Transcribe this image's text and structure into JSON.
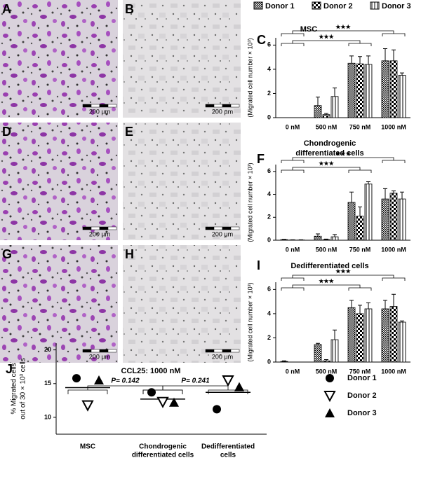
{
  "panels": [
    {
      "label": "A",
      "scale_bar": "200 µm"
    },
    {
      "label": "B",
      "scale_bar": "200 µm"
    },
    {
      "label": "D",
      "scale_bar": "200 µm"
    },
    {
      "label": "E",
      "scale_bar": "200 µm"
    },
    {
      "label": "G",
      "scale_bar": "200 µm"
    },
    {
      "label": "H",
      "scale_bar": "200 µm"
    }
  ],
  "chart_data": [
    {
      "type": "bar",
      "panel": "C",
      "title": "MSC",
      "ylabel": "(Migrated cell number × 10³)",
      "categories": [
        "0 nM",
        "500 nM",
        "750 nM",
        "1000 nM"
      ],
      "ylim": [
        0,
        6.6
      ],
      "yticks": [
        0,
        2,
        4,
        6
      ],
      "annotations": [
        "★★★",
        "★★★"
      ],
      "series": [
        {
          "name": "Donor 1",
          "pattern": "crosshatch",
          "color": "#000000",
          "values": [
            0,
            1.0,
            4.5,
            4.7
          ],
          "errors": [
            0,
            0.7,
            0.6,
            1.0
          ]
        },
        {
          "name": "Donor 2",
          "pattern": "checker",
          "color": "#000000",
          "values": [
            0,
            0.25,
            4.45,
            4.7
          ],
          "errors": [
            0,
            0.1,
            0.6,
            0.9
          ]
        },
        {
          "name": "Donor 3",
          "pattern": "stripes",
          "color": "#000000",
          "values": [
            0,
            1.75,
            4.4,
            3.5
          ],
          "errors": [
            0,
            0.7,
            0.7,
            0.2
          ]
        }
      ]
    },
    {
      "type": "bar",
      "panel": "F",
      "title": [
        "Chondrogenic",
        "differentiated cells"
      ],
      "ylabel": "(Migrated cell number × 10³)",
      "categories": [
        "0 nM",
        "500 nM",
        "750 nM",
        "1000 nM"
      ],
      "ylim": [
        0,
        6.6
      ],
      "yticks": [
        0,
        2,
        4,
        6
      ],
      "annotations": [
        "★★★",
        "★★★"
      ],
      "series": [
        {
          "pattern": "crosshatch",
          "color": "#000000",
          "values": [
            0.05,
            0.35,
            3.3,
            3.6
          ],
          "errors": [
            0.03,
            0.2,
            0.9,
            0.9
          ]
        },
        {
          "pattern": "checker",
          "color": "#000000",
          "values": [
            0.02,
            0.05,
            2.1,
            4.1
          ],
          "errors": [
            0.02,
            0.05,
            0.8,
            0.2
          ]
        },
        {
          "pattern": "stripes",
          "color": "#000000",
          "values": [
            0.02,
            0.3,
            4.9,
            3.6
          ],
          "errors": [
            0.02,
            0.2,
            0.2,
            0.6
          ]
        }
      ]
    },
    {
      "type": "bar",
      "panel": "I",
      "title": "Dedifferentiated cells",
      "ylabel": "(Migrated cell number × 10³)",
      "categories": [
        "0 nM",
        "500 nM",
        "750 nM",
        "1000 nM"
      ],
      "ylim": [
        0,
        6.6
      ],
      "yticks": [
        0,
        2,
        4,
        6
      ],
      "annotations": [
        "★★★",
        "★★★"
      ],
      "series": [
        {
          "pattern": "crosshatch",
          "color": "#000000",
          "values": [
            0.05,
            1.45,
            4.5,
            4.4
          ],
          "errors": [
            0.05,
            0.1,
            0.6,
            0.7
          ]
        },
        {
          "pattern": "checker",
          "color": "#000000",
          "values": [
            0,
            0.1,
            4.0,
            4.6
          ],
          "errors": [
            0,
            0.1,
            0.7,
            1.0
          ]
        },
        {
          "pattern": "stripes",
          "color": "#000000",
          "values": [
            0,
            1.85,
            4.4,
            3.3
          ],
          "errors": [
            0,
            0.8,
            0.5,
            0.1
          ]
        }
      ]
    },
    {
      "type": "dot",
      "panel": "J",
      "title": "CCL25: 1000 nM",
      "ylabel": [
        "% Migrated cells",
        "out of 30 × 10³ cells"
      ],
      "categories": [
        [
          "MSC"
        ],
        [
          "Chondrogenic",
          "differentiated cells"
        ],
        [
          "Dedifferentiated",
          "cells"
        ]
      ],
      "ylim": [
        7.5,
        21
      ],
      "yticks": [
        10,
        15,
        20
      ],
      "means": [
        14.4,
        12.7,
        13.7
      ],
      "annotations": [
        {
          "text": "P= 0.142",
          "between": [
            0,
            1
          ]
        },
        {
          "text": "P= 0.241",
          "between": [
            1,
            2
          ]
        }
      ],
      "series": [
        {
          "name": "Donor 1",
          "marker": "circle",
          "color": "#000000",
          "values": [
            15.8,
            13.7,
            11.2
          ]
        },
        {
          "name": "Donor 2",
          "marker": "triangle-down",
          "color": "#000000",
          "values": [
            11.8,
            12.3,
            15.5
          ]
        },
        {
          "name": "Donor 3",
          "marker": "triangle-up",
          "color": "#000000",
          "values": [
            15.5,
            12.2,
            14.5
          ]
        }
      ]
    }
  ]
}
